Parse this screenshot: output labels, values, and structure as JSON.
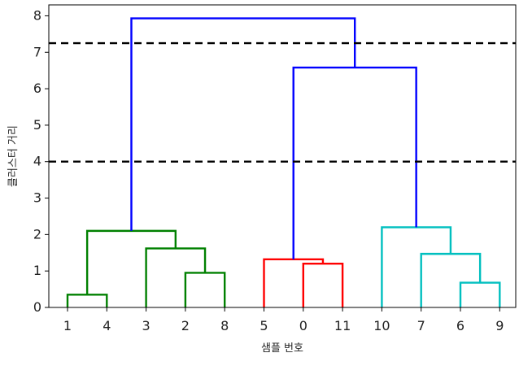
{
  "chart_data": {
    "type": "dendrogram",
    "title": "",
    "xlabel": "샘플 번호",
    "ylabel": "클러스터 거리",
    "ylim": [
      0,
      8.3
    ],
    "yticks": [
      0,
      1,
      2,
      3,
      4,
      5,
      6,
      7,
      8
    ],
    "leaf_order": [
      "1",
      "4",
      "3",
      "2",
      "8",
      "5",
      "0",
      "11",
      "10",
      "7",
      "6",
      "9"
    ],
    "cut_lines": [
      7.25,
      4.0
    ],
    "links": [
      {
        "left": 0,
        "right": 1,
        "height": 0.35,
        "color": "#008000"
      },
      {
        "left": 3,
        "right": 4,
        "height": 0.95,
        "color": "#008000"
      },
      {
        "left": 2,
        "right": 3.5,
        "height": 1.62,
        "color": "#008000"
      },
      {
        "left": 0.5,
        "right": 2.75,
        "height": 2.1,
        "color": "#008000"
      },
      {
        "left": 6,
        "right": 7,
        "height": 1.2,
        "color": "#ff0000"
      },
      {
        "left": 5,
        "right": 6.5,
        "height": 1.32,
        "color": "#ff0000"
      },
      {
        "left": 10,
        "right": 11,
        "height": 0.68,
        "color": "#00bfbf"
      },
      {
        "left": 9,
        "right": 10.5,
        "height": 1.47,
        "color": "#00bfbf"
      },
      {
        "left": 8,
        "right": 9.75,
        "height": 2.2,
        "color": "#00bfbf"
      },
      {
        "left": 5.75,
        "right": 8.875,
        "height": 6.58,
        "color": "#0000ff"
      },
      {
        "left": 1.625,
        "right": 7.3125,
        "height": 7.93,
        "color": "#0000ff"
      }
    ]
  }
}
